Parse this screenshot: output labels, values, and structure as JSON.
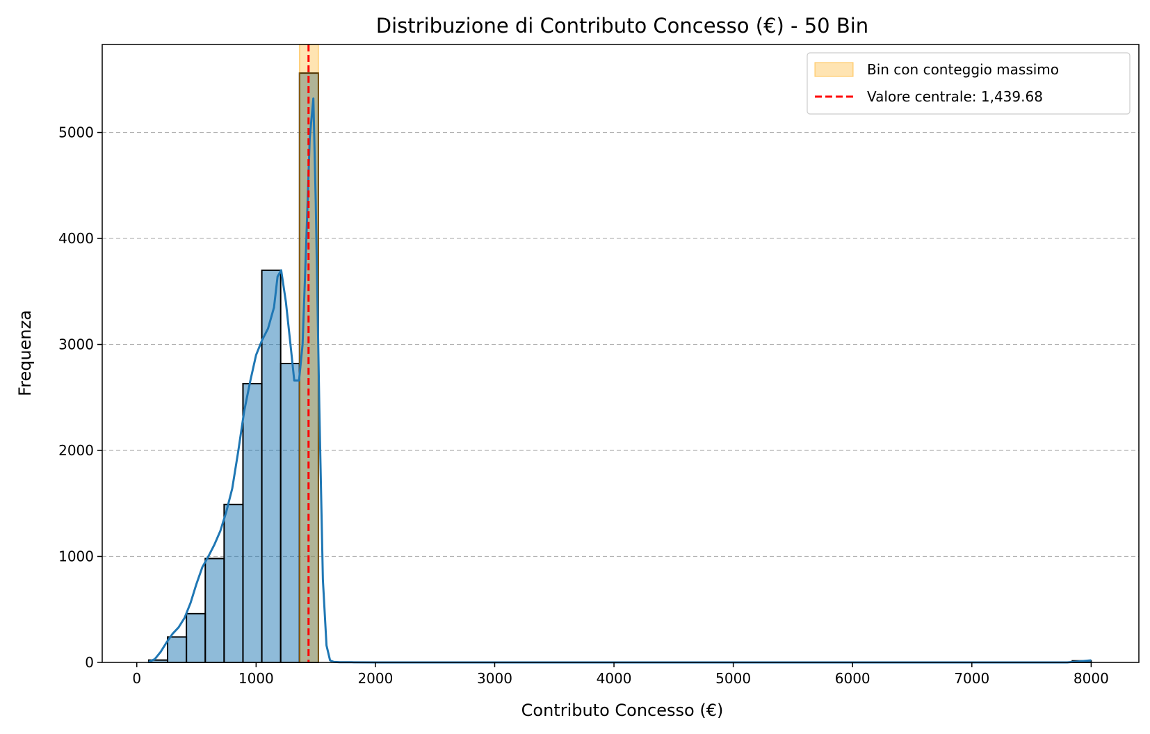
{
  "chart_data": {
    "type": "bar",
    "title": "Distribuzione di Contributo Concesso (€) - 50 Bin",
    "xlabel": "Contributo Concesso (€)",
    "ylabel": "Frequenza",
    "xlim": [
      -290,
      8400
    ],
    "ylim": [
      0,
      5830
    ],
    "xticks": [
      0,
      1000,
      2000,
      3000,
      4000,
      5000,
      6000,
      7000,
      8000
    ],
    "yticks": [
      0,
      1000,
      2000,
      3000,
      4000,
      5000
    ],
    "grid": "y-dashed",
    "legend_position": "top-right",
    "bins": {
      "start": 100,
      "width": 158,
      "counts": [
        22,
        240,
        460,
        980,
        1490,
        2630,
        3700,
        2820,
        5560,
        0,
        0,
        0,
        0,
        0,
        0,
        0,
        0,
        0,
        0,
        0,
        0,
        0,
        0,
        0,
        0,
        0,
        0,
        0,
        0,
        0,
        0,
        0,
        0,
        0,
        0,
        0,
        0,
        0,
        0,
        0,
        0,
        0,
        0,
        0,
        0,
        0,
        0,
        0,
        0,
        15
      ]
    },
    "highlight_bin_index": 8,
    "kde_series": {
      "x": [
        100,
        150,
        200,
        250,
        300,
        350,
        400,
        450,
        500,
        550,
        600,
        650,
        700,
        750,
        800,
        850,
        900,
        950,
        1000,
        1050,
        1100,
        1150,
        1180,
        1210,
        1250,
        1290,
        1320,
        1360,
        1390,
        1420,
        1450,
        1480,
        1500,
        1530,
        1560,
        1590,
        1620,
        1650,
        1700,
        1800,
        2000,
        3000,
        5000,
        7800,
        8000
      ],
      "y": [
        5,
        30,
        100,
        190,
        270,
        330,
        420,
        560,
        740,
        900,
        1000,
        1110,
        1240,
        1420,
        1640,
        1990,
        2370,
        2650,
        2900,
        3040,
        3150,
        3350,
        3640,
        3700,
        3400,
        2980,
        2660,
        2660,
        3000,
        3950,
        4950,
        5320,
        4350,
        2400,
        780,
        160,
        20,
        5,
        2,
        1,
        0,
        0,
        0,
        0,
        20
      ]
    },
    "center_value": 1439.68,
    "legend": [
      {
        "label": "Bin con conteggio massimo",
        "color": "#ffa500"
      },
      {
        "label": "Valore centrale: 1,439.68",
        "color": "#ff0000"
      }
    ],
    "colors": {
      "bar_fill": "#1f77b4",
      "kde_line": "#1f77b4",
      "highlight": "#ffa500",
      "center_line": "#ff0000"
    }
  }
}
